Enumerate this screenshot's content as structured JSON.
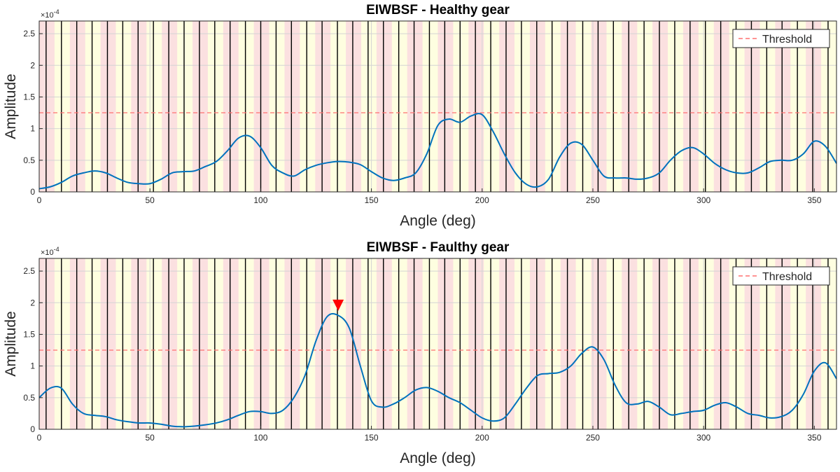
{
  "chart_data": [
    {
      "type": "line",
      "title": "EIWBSF - Healthy gear",
      "xlabel": "Angle (deg)",
      "ylabel": "Amplitude",
      "exponent_label": "×10",
      "exponent_power": "-4",
      "xlim": [
        0,
        360
      ],
      "ylim": [
        0,
        2.7
      ],
      "xticks": [
        0,
        50,
        100,
        150,
        200,
        250,
        300,
        350
      ],
      "yticks": [
        0,
        0.5,
        1,
        1.5,
        2,
        2.5
      ],
      "ytick_labels": [
        "0",
        "0.5",
        "1",
        "1.5",
        "2",
        "2.5"
      ],
      "grid": true,
      "legend": {
        "position": "top-right",
        "label": "Threshold"
      },
      "threshold": 1.25,
      "tooth_count": 52,
      "band_colors": [
        "#fbe0e0",
        "#fefee0"
      ],
      "line_color": "#0072bd",
      "threshold_color": "#ff7070",
      "series": [
        {
          "name": "EIWBSF",
          "x": [
            0,
            5,
            10,
            15,
            20,
            25,
            30,
            35,
            40,
            45,
            50,
            55,
            60,
            65,
            70,
            75,
            80,
            85,
            90,
            95,
            100,
            105,
            110,
            115,
            120,
            125,
            130,
            135,
            140,
            145,
            150,
            155,
            160,
            165,
            170,
            175,
            180,
            185,
            190,
            195,
            200,
            205,
            210,
            215,
            220,
            225,
            230,
            235,
            240,
            245,
            250,
            255,
            260,
            265,
            270,
            275,
            280,
            285,
            290,
            295,
            300,
            305,
            310,
            315,
            320,
            325,
            330,
            335,
            340,
            345,
            350,
            355,
            360
          ],
          "y": [
            0.05,
            0.08,
            0.15,
            0.25,
            0.3,
            0.33,
            0.3,
            0.22,
            0.15,
            0.13,
            0.13,
            0.2,
            0.3,
            0.32,
            0.33,
            0.4,
            0.48,
            0.65,
            0.85,
            0.88,
            0.7,
            0.42,
            0.3,
            0.25,
            0.35,
            0.42,
            0.46,
            0.48,
            0.47,
            0.43,
            0.32,
            0.22,
            0.18,
            0.22,
            0.3,
            0.6,
            1.05,
            1.15,
            1.1,
            1.2,
            1.22,
            0.95,
            0.6,
            0.3,
            0.12,
            0.08,
            0.2,
            0.55,
            0.77,
            0.75,
            0.5,
            0.25,
            0.22,
            0.22,
            0.2,
            0.22,
            0.3,
            0.5,
            0.65,
            0.7,
            0.6,
            0.45,
            0.35,
            0.3,
            0.3,
            0.38,
            0.48,
            0.5,
            0.5,
            0.6,
            0.8,
            0.72,
            0.45
          ]
        }
      ]
    },
    {
      "type": "line",
      "title": "EIWBSF - Faulthy gear",
      "xlabel": "Angle (deg)",
      "ylabel": "Amplitude",
      "exponent_label": "×10",
      "exponent_power": "-4",
      "xlim": [
        0,
        360
      ],
      "ylim": [
        0,
        2.7
      ],
      "xticks": [
        0,
        50,
        100,
        150,
        200,
        250,
        300,
        350
      ],
      "yticks": [
        0,
        0.5,
        1,
        1.5,
        2,
        2.5
      ],
      "ytick_labels": [
        "0",
        "0.5",
        "1",
        "1.5",
        "2",
        "2.5"
      ],
      "grid": true,
      "legend": {
        "position": "top-right",
        "label": "Threshold"
      },
      "threshold": 1.25,
      "tooth_count": 52,
      "band_colors": [
        "#fbe0e0",
        "#fefee0"
      ],
      "line_color": "#0072bd",
      "threshold_color": "#ff7070",
      "fault_marker": {
        "x": 135,
        "y": 1.96,
        "color": "#ff0000"
      },
      "series": [
        {
          "name": "EIWBSF",
          "x": [
            0,
            5,
            10,
            15,
            20,
            25,
            30,
            35,
            40,
            45,
            50,
            55,
            60,
            65,
            70,
            75,
            80,
            85,
            90,
            95,
            100,
            105,
            110,
            115,
            120,
            125,
            130,
            135,
            140,
            145,
            150,
            155,
            160,
            165,
            170,
            175,
            180,
            185,
            190,
            195,
            200,
            205,
            210,
            215,
            220,
            225,
            230,
            235,
            240,
            245,
            250,
            255,
            260,
            265,
            270,
            275,
            280,
            285,
            290,
            295,
            300,
            305,
            310,
            315,
            320,
            325,
            330,
            335,
            340,
            345,
            350,
            355,
            360
          ],
          "y": [
            0.5,
            0.65,
            0.65,
            0.4,
            0.25,
            0.22,
            0.2,
            0.15,
            0.12,
            0.1,
            0.1,
            0.08,
            0.05,
            0.04,
            0.05,
            0.07,
            0.1,
            0.15,
            0.22,
            0.28,
            0.28,
            0.25,
            0.3,
            0.5,
            0.85,
            1.4,
            1.78,
            1.8,
            1.6,
            1.0,
            0.45,
            0.35,
            0.4,
            0.5,
            0.62,
            0.66,
            0.6,
            0.5,
            0.42,
            0.3,
            0.18,
            0.13,
            0.18,
            0.4,
            0.65,
            0.85,
            0.88,
            0.9,
            1.0,
            1.2,
            1.3,
            1.1,
            0.7,
            0.42,
            0.4,
            0.44,
            0.35,
            0.23,
            0.25,
            0.28,
            0.3,
            0.38,
            0.42,
            0.35,
            0.25,
            0.22,
            0.18,
            0.2,
            0.3,
            0.55,
            0.92,
            1.05,
            0.8
          ]
        }
      ]
    }
  ]
}
